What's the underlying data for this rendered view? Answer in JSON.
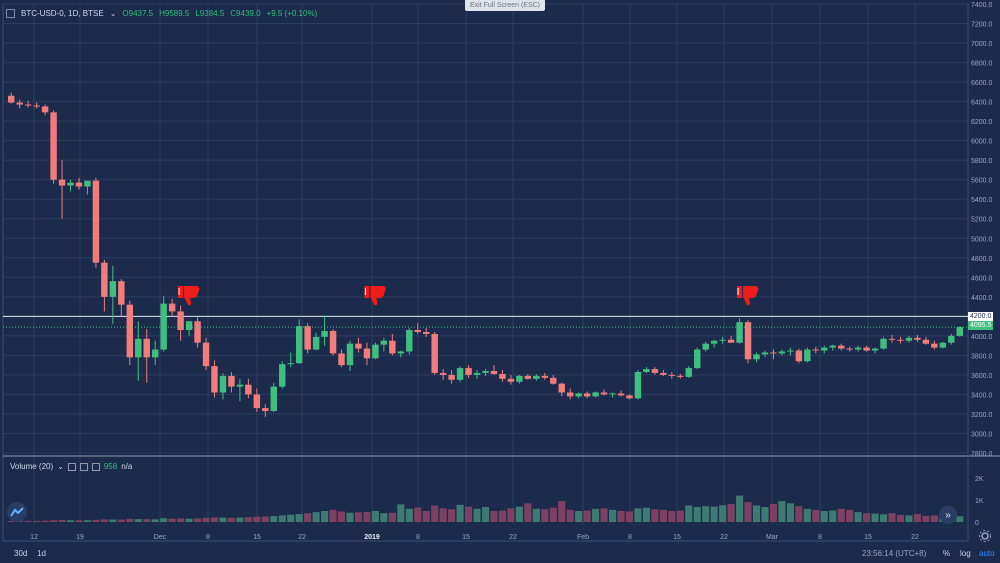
{
  "header": {
    "symbol": "BTC-USD-0, 1D, BTSE",
    "open": "O9437.5",
    "high": "H9589.5",
    "low": "L9384.5",
    "close": "C9439.0",
    "change": "+9.5 (+0.10%)"
  },
  "exit_full_screen": "Exit Full Screen (ESC)",
  "price_axis": [
    "7400.0",
    "7200.0",
    "7000.0",
    "6800.0",
    "6600.0",
    "6400.0",
    "6200.0",
    "6000.0",
    "5800.0",
    "5600.0",
    "5400.0",
    "5200.0",
    "5000.0",
    "4800.0",
    "4600.0",
    "4400.0",
    "4200.0",
    "4000.0",
    "3800.0",
    "3600.0",
    "3400.0",
    "3200.0",
    "3000.0",
    "2800.0"
  ],
  "horizontal_line_label": "4200.0",
  "last_price_label": "4095.5",
  "volume": {
    "label": "Volume (20)",
    "value": "958",
    "na": "n/a",
    "axis": [
      "2K",
      "1K",
      "0"
    ]
  },
  "time_axis": [
    "12",
    "19",
    "Dec",
    "8",
    "15",
    "22",
    "2019",
    "8",
    "15",
    "22",
    "Feb",
    "8",
    "15",
    "22",
    "Mar",
    "8",
    "15",
    "22"
  ],
  "bottom": {
    "range_30d": "30d",
    "interval_1d": "1d",
    "time": "23:56:14 (UTC+8)",
    "percent": "%",
    "log": "log",
    "auto": "auto"
  },
  "colors": {
    "bg": "#1c2b4b",
    "up": "#3fbf7f",
    "down": "#f27c7c",
    "grid": "#2c3d62",
    "thumb": "#ef1c1c"
  },
  "icons": [
    "chart-type-icon",
    "thumbs-down-icon",
    "settings-gear-icon",
    "scroll-right-icon",
    "logo-icon"
  ],
  "chart_data": {
    "type": "candlestick",
    "ylim": [
      2800,
      7400
    ],
    "hline": 4200,
    "candles": [
      [
        6460,
        6490,
        6380,
        6390
      ],
      [
        6390,
        6420,
        6330,
        6370
      ],
      [
        6370,
        6410,
        6340,
        6360
      ],
      [
        6360,
        6390,
        6330,
        6350
      ],
      [
        6350,
        6370,
        6260,
        6290
      ],
      [
        6290,
        6310,
        5560,
        5600
      ],
      [
        5600,
        5800,
        5200,
        5540
      ],
      [
        5540,
        5600,
        5480,
        5570
      ],
      [
        5570,
        5620,
        5500,
        5530
      ],
      [
        5530,
        5580,
        5450,
        5590
      ],
      [
        5590,
        5620,
        4700,
        4750
      ],
      [
        4750,
        4780,
        4250,
        4400
      ],
      [
        4400,
        4720,
        4120,
        4560
      ],
      [
        4560,
        4580,
        4200,
        4320
      ],
      [
        4320,
        4360,
        3700,
        3780
      ],
      [
        3780,
        4150,
        3540,
        3970
      ],
      [
        3970,
        4070,
        3520,
        3780
      ],
      [
        3780,
        3950,
        3700,
        3860
      ],
      [
        3860,
        4410,
        3840,
        4330
      ],
      [
        4330,
        4380,
        4200,
        4250
      ],
      [
        4250,
        4310,
        3950,
        4060
      ],
      [
        4060,
        4150,
        4000,
        4150
      ],
      [
        4150,
        4190,
        3880,
        3930
      ],
      [
        3930,
        3980,
        3650,
        3690
      ],
      [
        3690,
        3750,
        3370,
        3420
      ],
      [
        3420,
        3620,
        3350,
        3590
      ],
      [
        3590,
        3630,
        3420,
        3480
      ],
      [
        3480,
        3560,
        3330,
        3500
      ],
      [
        3500,
        3560,
        3360,
        3400
      ],
      [
        3400,
        3460,
        3220,
        3260
      ],
      [
        3260,
        3300,
        3170,
        3230
      ],
      [
        3230,
        3520,
        3220,
        3480
      ],
      [
        3480,
        3740,
        3460,
        3710
      ],
      [
        3710,
        3830,
        3680,
        3720
      ],
      [
        3720,
        4170,
        3710,
        4100
      ],
      [
        4100,
        4130,
        3820,
        3860
      ],
      [
        3860,
        4030,
        3850,
        3990
      ],
      [
        3990,
        4210,
        3900,
        4050
      ],
      [
        4050,
        4070,
        3800,
        3820
      ],
      [
        3820,
        3860,
        3680,
        3700
      ],
      [
        3700,
        3950,
        3640,
        3920
      ],
      [
        3920,
        3980,
        3830,
        3870
      ],
      [
        3870,
        3930,
        3700,
        3770
      ],
      [
        3770,
        3930,
        3760,
        3910
      ],
      [
        3910,
        3980,
        3840,
        3950
      ],
      [
        3950,
        4020,
        3800,
        3820
      ],
      [
        3820,
        3850,
        3780,
        3840
      ],
      [
        3840,
        4080,
        3810,
        4060
      ],
      [
        4060,
        4130,
        4020,
        4040
      ],
      [
        4040,
        4080,
        3990,
        4020
      ],
      [
        4020,
        4040,
        3600,
        3620
      ],
      [
        3620,
        3660,
        3550,
        3600
      ],
      [
        3600,
        3650,
        3510,
        3550
      ],
      [
        3550,
        3690,
        3530,
        3670
      ],
      [
        3670,
        3700,
        3570,
        3600
      ],
      [
        3600,
        3650,
        3560,
        3620
      ],
      [
        3620,
        3660,
        3590,
        3640
      ],
      [
        3640,
        3700,
        3600,
        3610
      ],
      [
        3610,
        3650,
        3530,
        3560
      ],
      [
        3560,
        3600,
        3500,
        3530
      ],
      [
        3530,
        3600,
        3510,
        3590
      ],
      [
        3590,
        3610,
        3550,
        3560
      ],
      [
        3560,
        3610,
        3540,
        3590
      ],
      [
        3590,
        3620,
        3550,
        3570
      ],
      [
        3570,
        3600,
        3500,
        3510
      ],
      [
        3510,
        3520,
        3380,
        3420
      ],
      [
        3420,
        3460,
        3350,
        3380
      ],
      [
        3380,
        3420,
        3360,
        3410
      ],
      [
        3410,
        3430,
        3360,
        3380
      ],
      [
        3380,
        3430,
        3370,
        3420
      ],
      [
        3420,
        3450,
        3390,
        3400
      ],
      [
        3400,
        3420,
        3370,
        3410
      ],
      [
        3410,
        3440,
        3380,
        3390
      ],
      [
        3390,
        3400,
        3350,
        3360
      ],
      [
        3360,
        3650,
        3350,
        3630
      ],
      [
        3630,
        3680,
        3620,
        3660
      ],
      [
        3660,
        3680,
        3600,
        3620
      ],
      [
        3620,
        3650,
        3590,
        3600
      ],
      [
        3600,
        3630,
        3560,
        3590
      ],
      [
        3590,
        3610,
        3560,
        3580
      ],
      [
        3580,
        3690,
        3570,
        3670
      ],
      [
        3670,
        3880,
        3660,
        3860
      ],
      [
        3860,
        3940,
        3840,
        3920
      ],
      [
        3920,
        3960,
        3880,
        3950
      ],
      [
        3950,
        3990,
        3920,
        3960
      ],
      [
        3960,
        4000,
        3940,
        3930
      ],
      [
        3930,
        4180,
        3920,
        4140
      ],
      [
        4140,
        4160,
        3720,
        3760
      ],
      [
        3760,
        3830,
        3730,
        3810
      ],
      [
        3810,
        3850,
        3780,
        3830
      ],
      [
        3830,
        3860,
        3760,
        3820
      ],
      [
        3820,
        3860,
        3800,
        3840
      ],
      [
        3840,
        3880,
        3800,
        3850
      ],
      [
        3850,
        3870,
        3720,
        3740
      ],
      [
        3740,
        3880,
        3730,
        3860
      ],
      [
        3860,
        3890,
        3820,
        3850
      ],
      [
        3850,
        3900,
        3820,
        3880
      ],
      [
        3880,
        3910,
        3850,
        3900
      ],
      [
        3900,
        3920,
        3850,
        3870
      ],
      [
        3870,
        3890,
        3840,
        3860
      ],
      [
        3860,
        3900,
        3840,
        3880
      ],
      [
        3880,
        3900,
        3840,
        3850
      ],
      [
        3850,
        3880,
        3820,
        3870
      ],
      [
        3870,
        3990,
        3860,
        3970
      ],
      [
        3970,
        4010,
        3930,
        3960
      ],
      [
        3960,
        3990,
        3920,
        3950
      ],
      [
        3950,
        4000,
        3930,
        3980
      ],
      [
        3980,
        4010,
        3940,
        3960
      ],
      [
        3960,
        3990,
        3910,
        3920
      ],
      [
        3920,
        3950,
        3860,
        3880
      ],
      [
        3880,
        3940,
        3870,
        3930
      ],
      [
        3930,
        4020,
        3910,
        4000
      ],
      [
        4000,
        4100,
        3990,
        4090
      ]
    ],
    "volumes": [
      0.05,
      0.05,
      0.05,
      0.05,
      0.06,
      0.08,
      0.09,
      0.08,
      0.08,
      0.08,
      0.1,
      0.12,
      0.11,
      0.11,
      0.14,
      0.13,
      0.13,
      0.12,
      0.17,
      0.15,
      0.16,
      0.15,
      0.16,
      0.19,
      0.21,
      0.2,
      0.19,
      0.2,
      0.22,
      0.24,
      0.25,
      0.27,
      0.3,
      0.33,
      0.36,
      0.4,
      0.45,
      0.5,
      0.55,
      0.48,
      0.42,
      0.44,
      0.46,
      0.5,
      0.4,
      0.42,
      0.8,
      0.6,
      0.66,
      0.5,
      0.75,
      0.62,
      0.58,
      0.78,
      0.7,
      0.6,
      0.68,
      0.5,
      0.52,
      0.62,
      0.7,
      0.85,
      0.6,
      0.58,
      0.65,
      0.95,
      0.55,
      0.5,
      0.52,
      0.6,
      0.62,
      0.55,
      0.5,
      0.48,
      0.62,
      0.65,
      0.58,
      0.55,
      0.5,
      0.52,
      0.75,
      0.68,
      0.72,
      0.7,
      0.76,
      0.82,
      1.2,
      0.9,
      0.75,
      0.68,
      0.82,
      0.95,
      0.85,
      0.72,
      0.6,
      0.55,
      0.5,
      0.52,
      0.6,
      0.55,
      0.45,
      0.4,
      0.38,
      0.35,
      0.4,
      0.32,
      0.3,
      0.36,
      0.28,
      0.3,
      0.25,
      0.2,
      0.26,
      0.18
    ],
    "markers": [
      {
        "index": 21,
        "label": "thumbs-down"
      },
      {
        "index": 43,
        "label": "thumbs-down"
      },
      {
        "index": 87,
        "label": "thumbs-down"
      }
    ]
  }
}
